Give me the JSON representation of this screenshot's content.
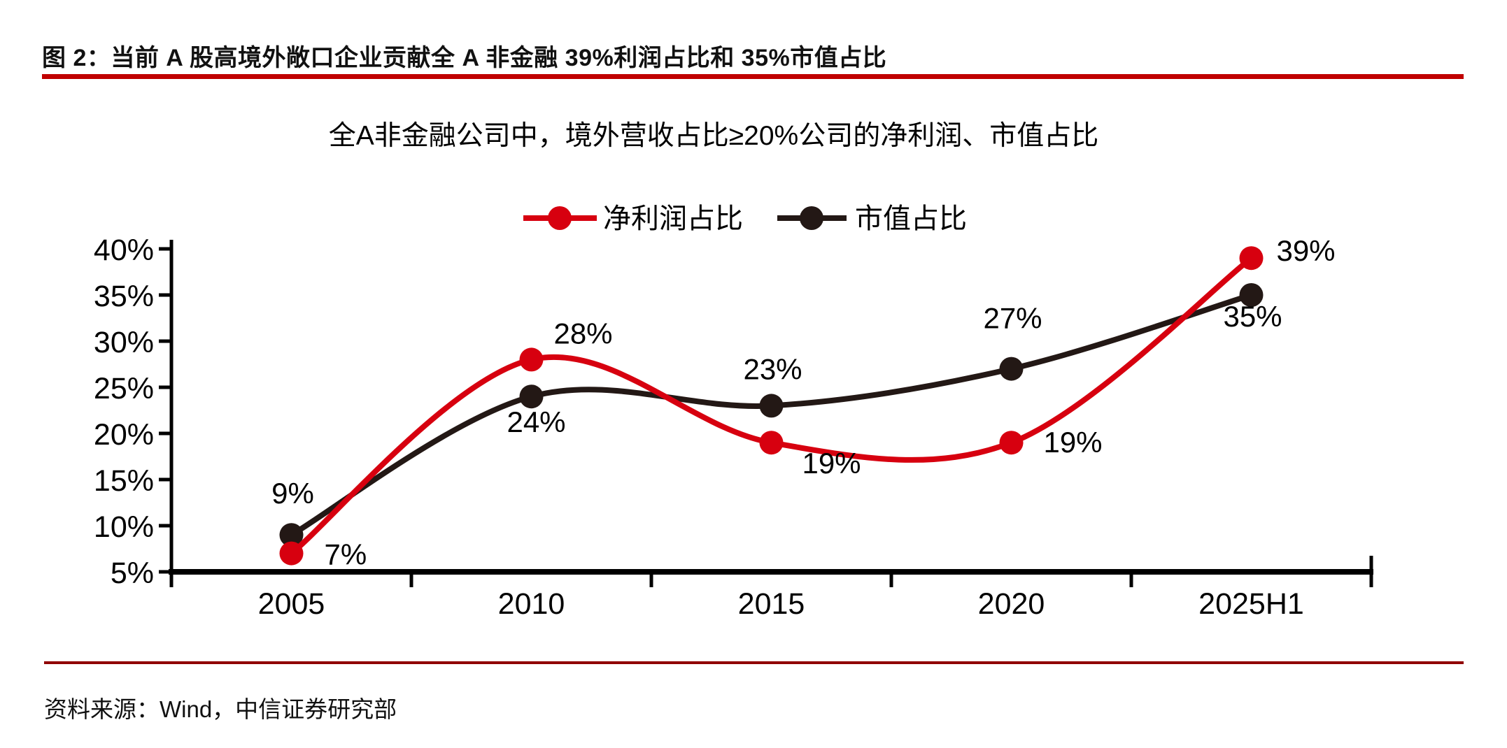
{
  "figure": {
    "title": "图 2：当前 A 股高境外敞口企业贡献全 A 非金融 39%利润占比和 35%市值占比",
    "source": "资料来源：Wind，中信证券研究部"
  },
  "colors": {
    "title_rule": "#C00000",
    "source_rule": "#900000",
    "axis": "#000000",
    "series_red": "#D7000F",
    "series_black": "#231815"
  },
  "chart_data": {
    "type": "line",
    "title": "全A非金融公司中，境外营收占比≥20%公司的净利润、市值占比",
    "categories": [
      "2005",
      "2010",
      "2015",
      "2020",
      "2025H1"
    ],
    "xlabel": "",
    "ylabel": "",
    "ylim": [
      5,
      40
    ],
    "ytick_labels": [
      "40%",
      "35%",
      "30%",
      "25%",
      "20%",
      "15%",
      "10%",
      "5%"
    ],
    "grid": false,
    "smooth": true,
    "legend_position": "top",
    "series": [
      {
        "name": "净利润占比",
        "color": "#D7000F",
        "values": [
          7,
          28,
          19,
          19,
          39
        ],
        "labels": [
          "7%",
          "28%",
          "19%",
          "19%",
          "39%"
        ],
        "label_pos": [
          [
            47,
            16,
            "start"
          ],
          [
            74,
            -23,
            "middle"
          ],
          [
            86,
            44,
            "middle"
          ],
          [
            88,
            14,
            "middle"
          ],
          [
            78,
            4,
            "middle"
          ]
        ]
      },
      {
        "name": "市值占比",
        "color": "#231815",
        "values": [
          9,
          24,
          23,
          27,
          35
        ],
        "labels": [
          "9%",
          "24%",
          "23%",
          "27%",
          "35%"
        ],
        "label_pos": [
          [
            2,
            -45,
            "middle"
          ],
          [
            7,
            51,
            "middle"
          ],
          [
            2,
            -38,
            "middle"
          ],
          [
            2,
            -58,
            "middle"
          ],
          [
            2,
            45,
            "middle"
          ]
        ]
      }
    ]
  }
}
